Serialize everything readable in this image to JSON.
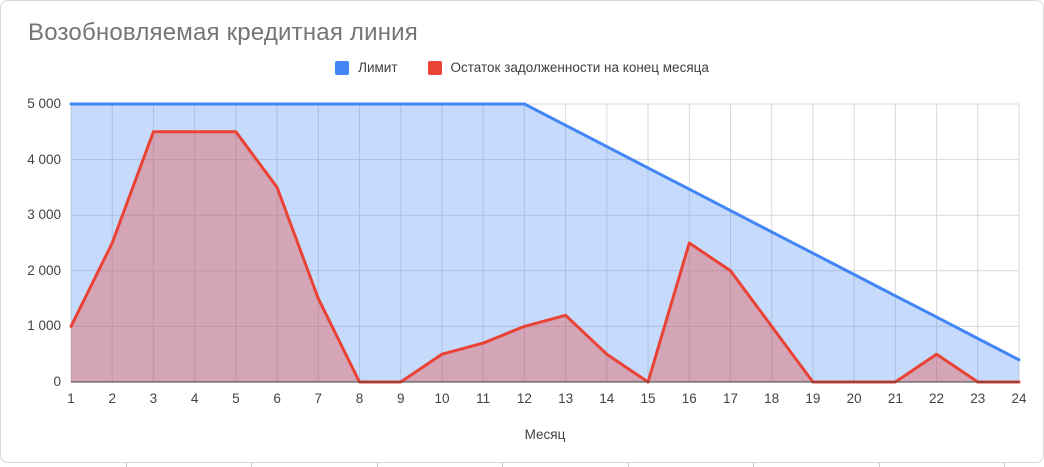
{
  "chart": {
    "title": "Возобновляемая кредитная линия"
  },
  "legend": [
    {
      "label": "Лимит",
      "color": "#4285f4"
    },
    {
      "label": "Остаток задолженности на конец месяца",
      "color": "#ea4335"
    }
  ],
  "chart_data": {
    "type": "area",
    "title": "Возобновляемая кредитная линия",
    "xlabel": "Месяц",
    "ylabel": "",
    "x": [
      1,
      2,
      3,
      4,
      5,
      6,
      7,
      8,
      9,
      10,
      11,
      12,
      13,
      14,
      15,
      16,
      17,
      18,
      19,
      20,
      21,
      22,
      23,
      24
    ],
    "series": [
      {
        "name": "Лимит",
        "color": "#4285f4",
        "fill_opacity": 0.3,
        "values": [
          5000,
          5000,
          5000,
          5000,
          5000,
          5000,
          5000,
          5000,
          5000,
          5000,
          5000,
          5000,
          4617,
          4233,
          3850,
          3467,
          3083,
          2700,
          2317,
          1933,
          1550,
          1167,
          783,
          400
        ]
      },
      {
        "name": "Остаток задолженности на конец месяца",
        "color": "#ea4335",
        "fill_opacity": 0.35,
        "values": [
          1000,
          2500,
          4500,
          4500,
          4500,
          3500,
          1500,
          0,
          0,
          500,
          700,
          1000,
          1200,
          500,
          0,
          2500,
          2000,
          1000,
          0,
          0,
          0,
          500,
          0,
          0
        ]
      }
    ],
    "ylim": [
      0,
      5000
    ],
    "yticks": [
      0,
      1000,
      2000,
      3000,
      4000,
      5000
    ],
    "ytick_labels": [
      "0",
      "1 000",
      "2 000",
      "3 000",
      "4 000",
      "5 000"
    ],
    "grid": true,
    "legend_position": "top"
  },
  "colors": {
    "gridline": "#d9d9d9",
    "axis_line": "#424242",
    "card_border": "#d9d9d9",
    "title_text": "#757575",
    "tick_text": "#424242"
  }
}
